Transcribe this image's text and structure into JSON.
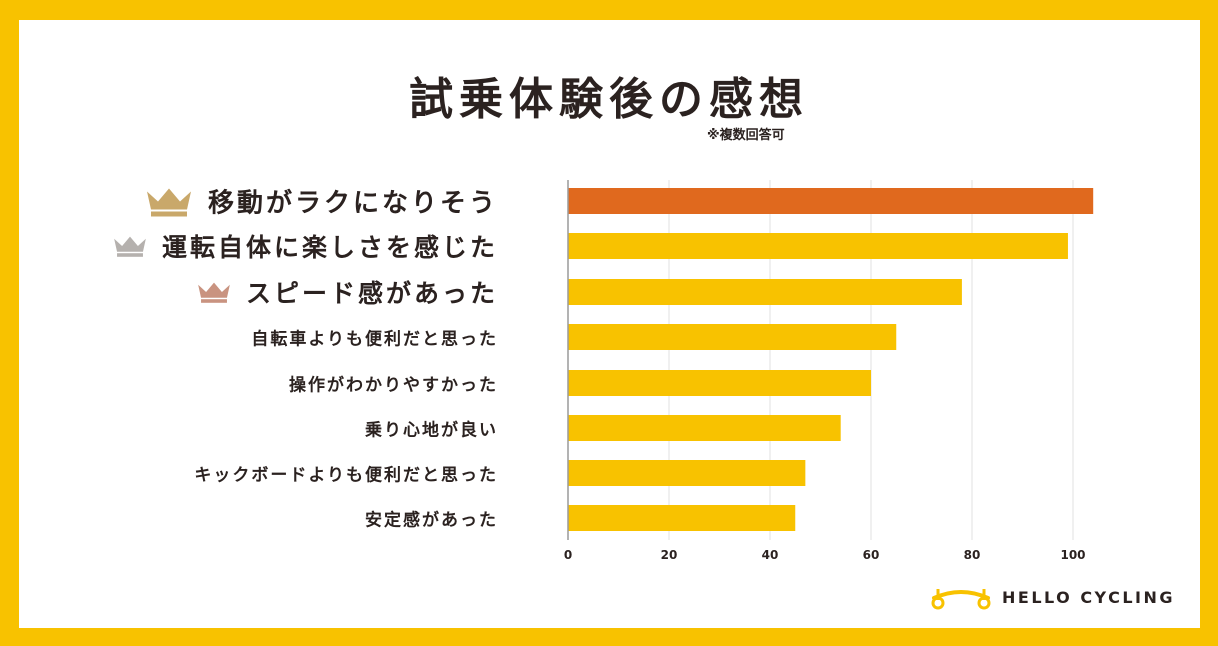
{
  "title": "試乗体験後の感想",
  "note": "※複数回答可",
  "brand": {
    "name": "HELLO CYCLING",
    "color": "#F8C200"
  },
  "colors": {
    "highlight": "#E0691E",
    "bar": "#F8C200",
    "text": "#2b2220",
    "grid": "#e2e2e2",
    "gold": "#C9A86A",
    "silver": "#B5B1AE",
    "bronze": "#C99380"
  },
  "chart_data": {
    "type": "bar",
    "orientation": "horizontal",
    "title": "試乗体験後の感想",
    "categories": [
      "移動がラクになりそう",
      "運転自体に楽しさを感じた",
      "スピード感があった",
      "自転車よりも便利だと思った",
      "操作がわかりやすかった",
      "乗り心地が良い",
      "キックボードよりも便利だと思った",
      "安定感があった"
    ],
    "values": [
      104,
      99,
      78,
      65,
      60,
      54,
      47,
      45
    ],
    "ranks": [
      "gold-crown",
      "silver-crown",
      "bronze-crown",
      "",
      "",
      "",
      "",
      ""
    ],
    "xlim": [
      0,
      110
    ],
    "xticks": [
      0,
      20,
      40,
      60,
      80,
      100
    ],
    "grid": true,
    "legend": "none"
  }
}
